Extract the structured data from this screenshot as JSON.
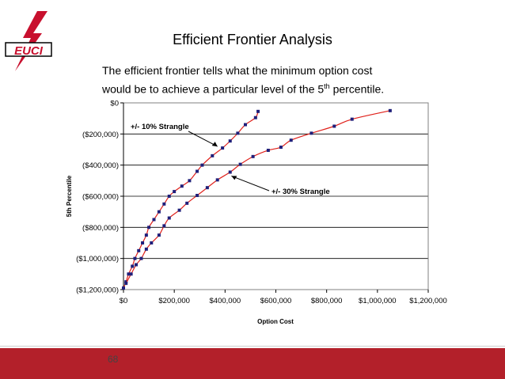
{
  "logo": {
    "name": "EUCI",
    "colors": {
      "red": "#c8102e",
      "black": "#000000"
    }
  },
  "title": "Efficient Frontier Analysis",
  "intro": {
    "line1": "The efficient frontier tells what the minimum option cost",
    "line2_before": "would be to achieve a particular level of the 5",
    "line2_sup": "th",
    "line2_after": " percentile."
  },
  "footer": {
    "page_number": "68",
    "color": "#b3202a"
  },
  "chart_data": {
    "type": "scatter",
    "xlabel": "Option Cost",
    "ylabel": "5th Percentile",
    "xlim": [
      0,
      1200000
    ],
    "ylim": [
      -1200000,
      0
    ],
    "x_ticks": [
      0,
      200000,
      400000,
      600000,
      800000,
      1000000,
      1200000
    ],
    "x_tick_labels": [
      "$0",
      "$200,000",
      "$400,000",
      "$600,000",
      "$800,000",
      "$1,000,000",
      "$1,200,000"
    ],
    "y_ticks": [
      0,
      -200000,
      -400000,
      -600000,
      -800000,
      -1000000,
      -1200000
    ],
    "y_tick_labels": [
      "$0",
      "($200,000)",
      "($400,000)",
      "($600,000)",
      "($800,000)",
      "($1,000,000)",
      "($1,200,000)"
    ],
    "grid": "horizontal",
    "marker_color": "#1f1f7a",
    "line_color": "#e0201a",
    "series": [
      {
        "name": "+/- 10% Strangle",
        "points": [
          [
            0,
            -1190000
          ],
          [
            10000,
            -1150000
          ],
          [
            20000,
            -1100000
          ],
          [
            35000,
            -1050000
          ],
          [
            45000,
            -1000000
          ],
          [
            60000,
            -950000
          ],
          [
            75000,
            -900000
          ],
          [
            90000,
            -850000
          ],
          [
            100000,
            -800000
          ],
          [
            120000,
            -750000
          ],
          [
            140000,
            -700000
          ],
          [
            160000,
            -650000
          ],
          [
            180000,
            -600000
          ],
          [
            200000,
            -570000
          ],
          [
            230000,
            -535000
          ],
          [
            260000,
            -500000
          ],
          [
            290000,
            -440000
          ],
          [
            310000,
            -400000
          ],
          [
            350000,
            -340000
          ],
          [
            390000,
            -290000
          ],
          [
            420000,
            -245000
          ],
          [
            450000,
            -195000
          ],
          [
            480000,
            -140000
          ],
          [
            520000,
            -95000
          ],
          [
            530000,
            -55000
          ]
        ]
      },
      {
        "name": "+/- 30% Strangle",
        "points": [
          [
            10000,
            -1160000
          ],
          [
            30000,
            -1100000
          ],
          [
            50000,
            -1040000
          ],
          [
            70000,
            -1000000
          ],
          [
            90000,
            -940000
          ],
          [
            110000,
            -900000
          ],
          [
            140000,
            -850000
          ],
          [
            160000,
            -790000
          ],
          [
            180000,
            -740000
          ],
          [
            220000,
            -690000
          ],
          [
            250000,
            -645000
          ],
          [
            290000,
            -595000
          ],
          [
            330000,
            -545000
          ],
          [
            370000,
            -495000
          ],
          [
            420000,
            -445000
          ],
          [
            460000,
            -395000
          ],
          [
            510000,
            -345000
          ],
          [
            570000,
            -305000
          ],
          [
            620000,
            -285000
          ],
          [
            660000,
            -240000
          ],
          [
            740000,
            -195000
          ],
          [
            830000,
            -150000
          ],
          [
            900000,
            -105000
          ],
          [
            1050000,
            -50000
          ]
        ]
      }
    ],
    "annotations": [
      {
        "text": "+/- 10% Strangle",
        "target": [
          370000,
          -280000
        ]
      },
      {
        "text": "+/- 30% Strangle",
        "target": [
          425000,
          -470000
        ]
      }
    ]
  }
}
